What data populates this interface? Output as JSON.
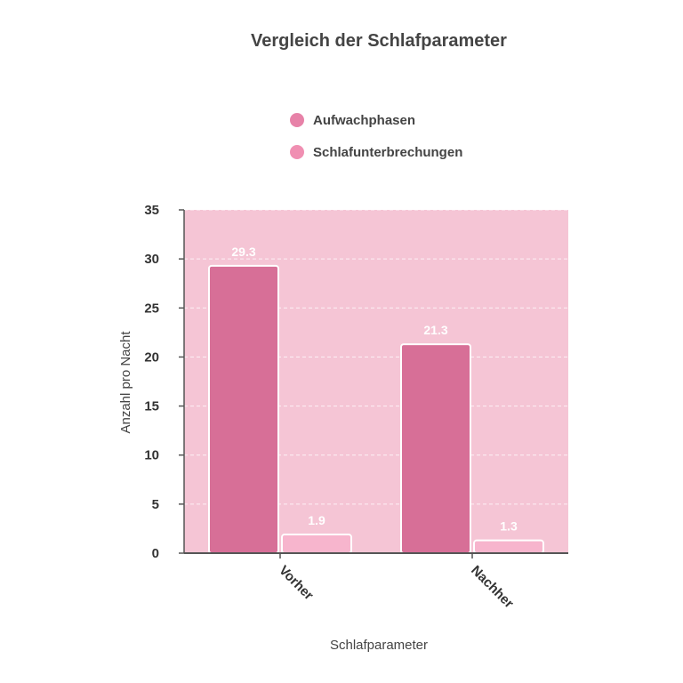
{
  "chart_data": {
    "type": "bar",
    "title": "Vergleich der Schlafparameter",
    "xlabel": "Schlafparameter",
    "ylabel": "Anzahl pro Nacht",
    "categories": [
      "Vorher",
      "Nachher"
    ],
    "series": [
      {
        "name": "Aufwachphasen",
        "values": [
          29.3,
          21.3
        ],
        "labels": [
          "29.3",
          "21.3"
        ],
        "color": "#d76f97"
      },
      {
        "name": "Schlafunterbrechungen",
        "values": [
          1.9,
          1.3
        ],
        "labels": [
          "1.9",
          "1.3"
        ],
        "color": "#f7b5cd"
      }
    ],
    "ylim": [
      0,
      35
    ],
    "yticks": [
      "0",
      "5",
      "10",
      "15",
      "20",
      "25",
      "30",
      "35"
    ],
    "grid": true,
    "legend_position": "top-center",
    "colors": {
      "plot_background": "#f5c5d5",
      "legend_marker_1": "#e782a8",
      "legend_marker_2": "#f08fb2",
      "bar_border": "#ffffff",
      "axis": "#555555"
    }
  }
}
